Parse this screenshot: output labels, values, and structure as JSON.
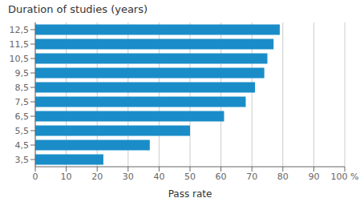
{
  "chart_data": {
    "type": "bar",
    "orientation": "horizontal",
    "title": "Duration of studies (years)",
    "xlabel": "Pass rate",
    "categories": [
      "3,5",
      "4,5",
      "5,5",
      "6,5",
      "7,5",
      "8,5",
      "9,5",
      "10,5",
      "11,5",
      "12,5"
    ],
    "values": [
      22,
      37,
      50,
      61,
      68,
      71,
      74,
      75,
      77,
      79
    ],
    "color": "#1a8dc8",
    "xlim": [
      0,
      100
    ],
    "xticks": [
      0,
      10,
      20,
      30,
      40,
      50,
      60,
      70,
      80,
      90,
      {
        "value": 100,
        "label": "100 %"
      }
    ],
    "grid": true
  }
}
